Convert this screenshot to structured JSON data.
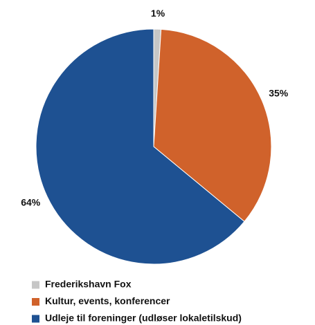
{
  "chart_data": {
    "type": "pie",
    "categories": [
      "Frederikshavn Fox",
      "Kultur, events, konferencer",
      "Udleje til foreninger (udløser lokaletilskud)"
    ],
    "values": [
      1,
      35,
      64
    ],
    "value_labels": [
      "1%",
      "35%",
      "64%"
    ],
    "colors": [
      "#c6c6c6",
      "#d0622b",
      "#1e5192"
    ]
  }
}
